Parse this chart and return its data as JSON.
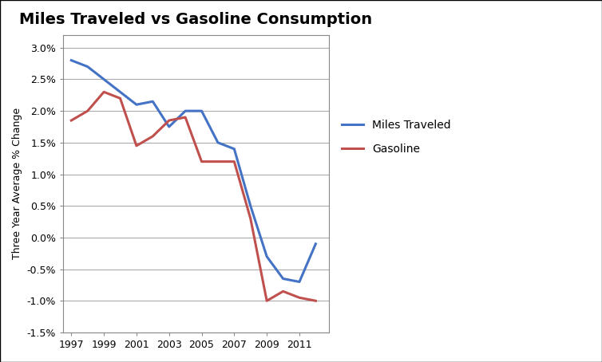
{
  "title": "Miles Traveled vs Gasoline Consumption",
  "ylabel": "Three Year Average % Change",
  "years_miles": [
    1997,
    1998,
    1999,
    2000,
    2001,
    2002,
    2003,
    2004,
    2005,
    2006,
    2007,
    2008,
    2009,
    2010,
    2011,
    2012
  ],
  "miles_traveled": [
    0.028,
    0.027,
    0.025,
    0.023,
    0.021,
    0.0215,
    0.0175,
    0.02,
    0.02,
    0.015,
    0.014,
    0.005,
    -0.003,
    -0.0065,
    -0.007,
    -0.001
  ],
  "years_gas": [
    1997,
    1998,
    1999,
    2000,
    2001,
    2002,
    2003,
    2004,
    2005,
    2006,
    2007,
    2008,
    2009,
    2010,
    2011,
    2012
  ],
  "gasoline": [
    0.0185,
    0.02,
    0.023,
    0.022,
    0.0145,
    0.016,
    0.0185,
    0.019,
    0.012,
    0.012,
    0.012,
    0.003,
    -0.01,
    -0.0085,
    -0.0095,
    -0.01
  ],
  "miles_color": "#4472C4",
  "gas_color": "#C0504D",
  "ylim": [
    -0.015,
    0.032
  ],
  "yticks": [
    -0.015,
    -0.01,
    -0.005,
    0.0,
    0.005,
    0.01,
    0.015,
    0.02,
    0.025,
    0.03
  ],
  "legend_labels": [
    "Miles Traveled",
    "Gasoline"
  ],
  "line_width": 2.2,
  "background_color": "#FFFFFF",
  "grid_color": "#AAAAAA",
  "border_color": "#000000"
}
